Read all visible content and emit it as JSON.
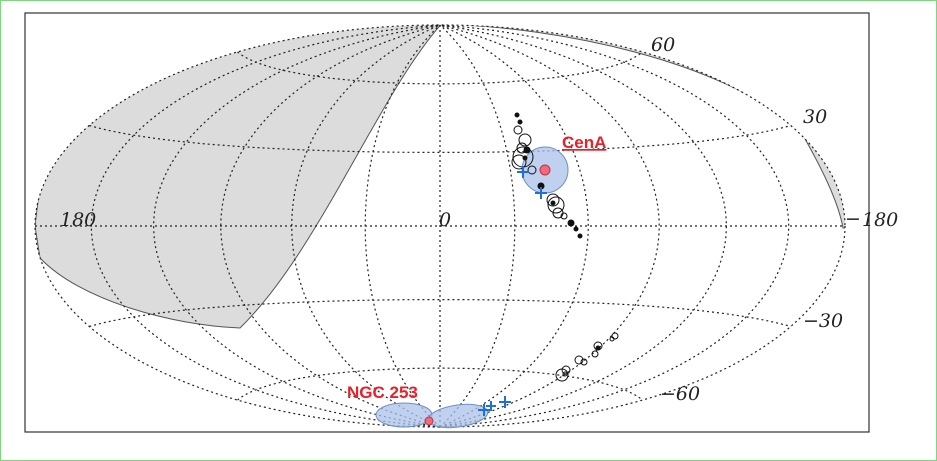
{
  "projection": "Aitoff/Hammer all-sky",
  "grid": {
    "latitudes": [
      -60,
      -30,
      0,
      30,
      60
    ],
    "longitude_step_deg": 30,
    "style": "dotted"
  },
  "tick_labels": {
    "lat_60": "60",
    "lat_30": "30",
    "lat_0": "0",
    "lat_m30": "−30",
    "lat_m60": "−60",
    "lon_left": "180",
    "lon_right": "180",
    "lon_right_dash": "−"
  },
  "sources": {
    "cena": {
      "label": "CenA",
      "color": "#e8202a",
      "region_color": "#a9c1e8"
    },
    "ngc253": {
      "label": "NGC 253",
      "color": "#e8202a",
      "region_color": "#a9c1e8"
    }
  },
  "shading": {
    "excluded_region_color": "#dcdcdc"
  },
  "markers": {
    "cross_color": "#1f6fd6",
    "circle_color": "#111111"
  }
}
